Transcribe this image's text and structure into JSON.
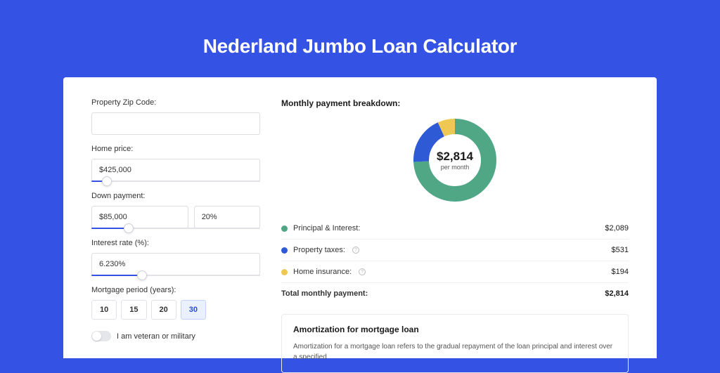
{
  "page": {
    "title": "Nederland Jumbo Loan Calculator",
    "bg_color": "#3452e3",
    "card_bg": "#ffffff"
  },
  "form": {
    "zip": {
      "label": "Property Zip Code:",
      "value": ""
    },
    "home_price": {
      "label": "Home price:",
      "value": "$425,000",
      "slider_pct": 9
    },
    "down_payment": {
      "label": "Down payment:",
      "amount": "$85,000",
      "percent": "20%",
      "slider_pct": 22
    },
    "interest_rate": {
      "label": "Interest rate (%):",
      "value": "6.230%",
      "slider_pct": 30
    },
    "mortgage_period": {
      "label": "Mortgage period (years):",
      "options": [
        "10",
        "15",
        "20",
        "30"
      ],
      "selected": "30"
    },
    "veteran": {
      "label": "I am veteran or military",
      "checked": false
    }
  },
  "breakdown": {
    "title": "Monthly payment breakdown:",
    "chart": {
      "type": "donut",
      "center_amount": "$2,814",
      "center_sub": "per month",
      "radius": 48,
      "stroke_width": 22,
      "bg_color": "#ffffff",
      "series": [
        {
          "key": "principal_interest",
          "value": 2089,
          "pct": 74.2,
          "color": "#4fa786"
        },
        {
          "key": "property_taxes",
          "value": 531,
          "pct": 18.9,
          "color": "#2e5ad6"
        },
        {
          "key": "home_insurance",
          "value": 194,
          "pct": 6.9,
          "color": "#efc753"
        }
      ]
    },
    "legend": [
      {
        "label": "Principal & Interest:",
        "color": "#4fa786",
        "value": "$2,089",
        "info": false
      },
      {
        "label": "Property taxes:",
        "color": "#2e5ad6",
        "value": "$531",
        "info": true
      },
      {
        "label": "Home insurance:",
        "color": "#efc753",
        "value": "$194",
        "info": true
      }
    ],
    "total": {
      "label": "Total monthly payment:",
      "value": "$2,814"
    }
  },
  "amortization": {
    "title": "Amortization for mortgage loan",
    "text": "Amortization for a mortgage loan refers to the gradual repayment of the loan principal and interest over a specified"
  }
}
